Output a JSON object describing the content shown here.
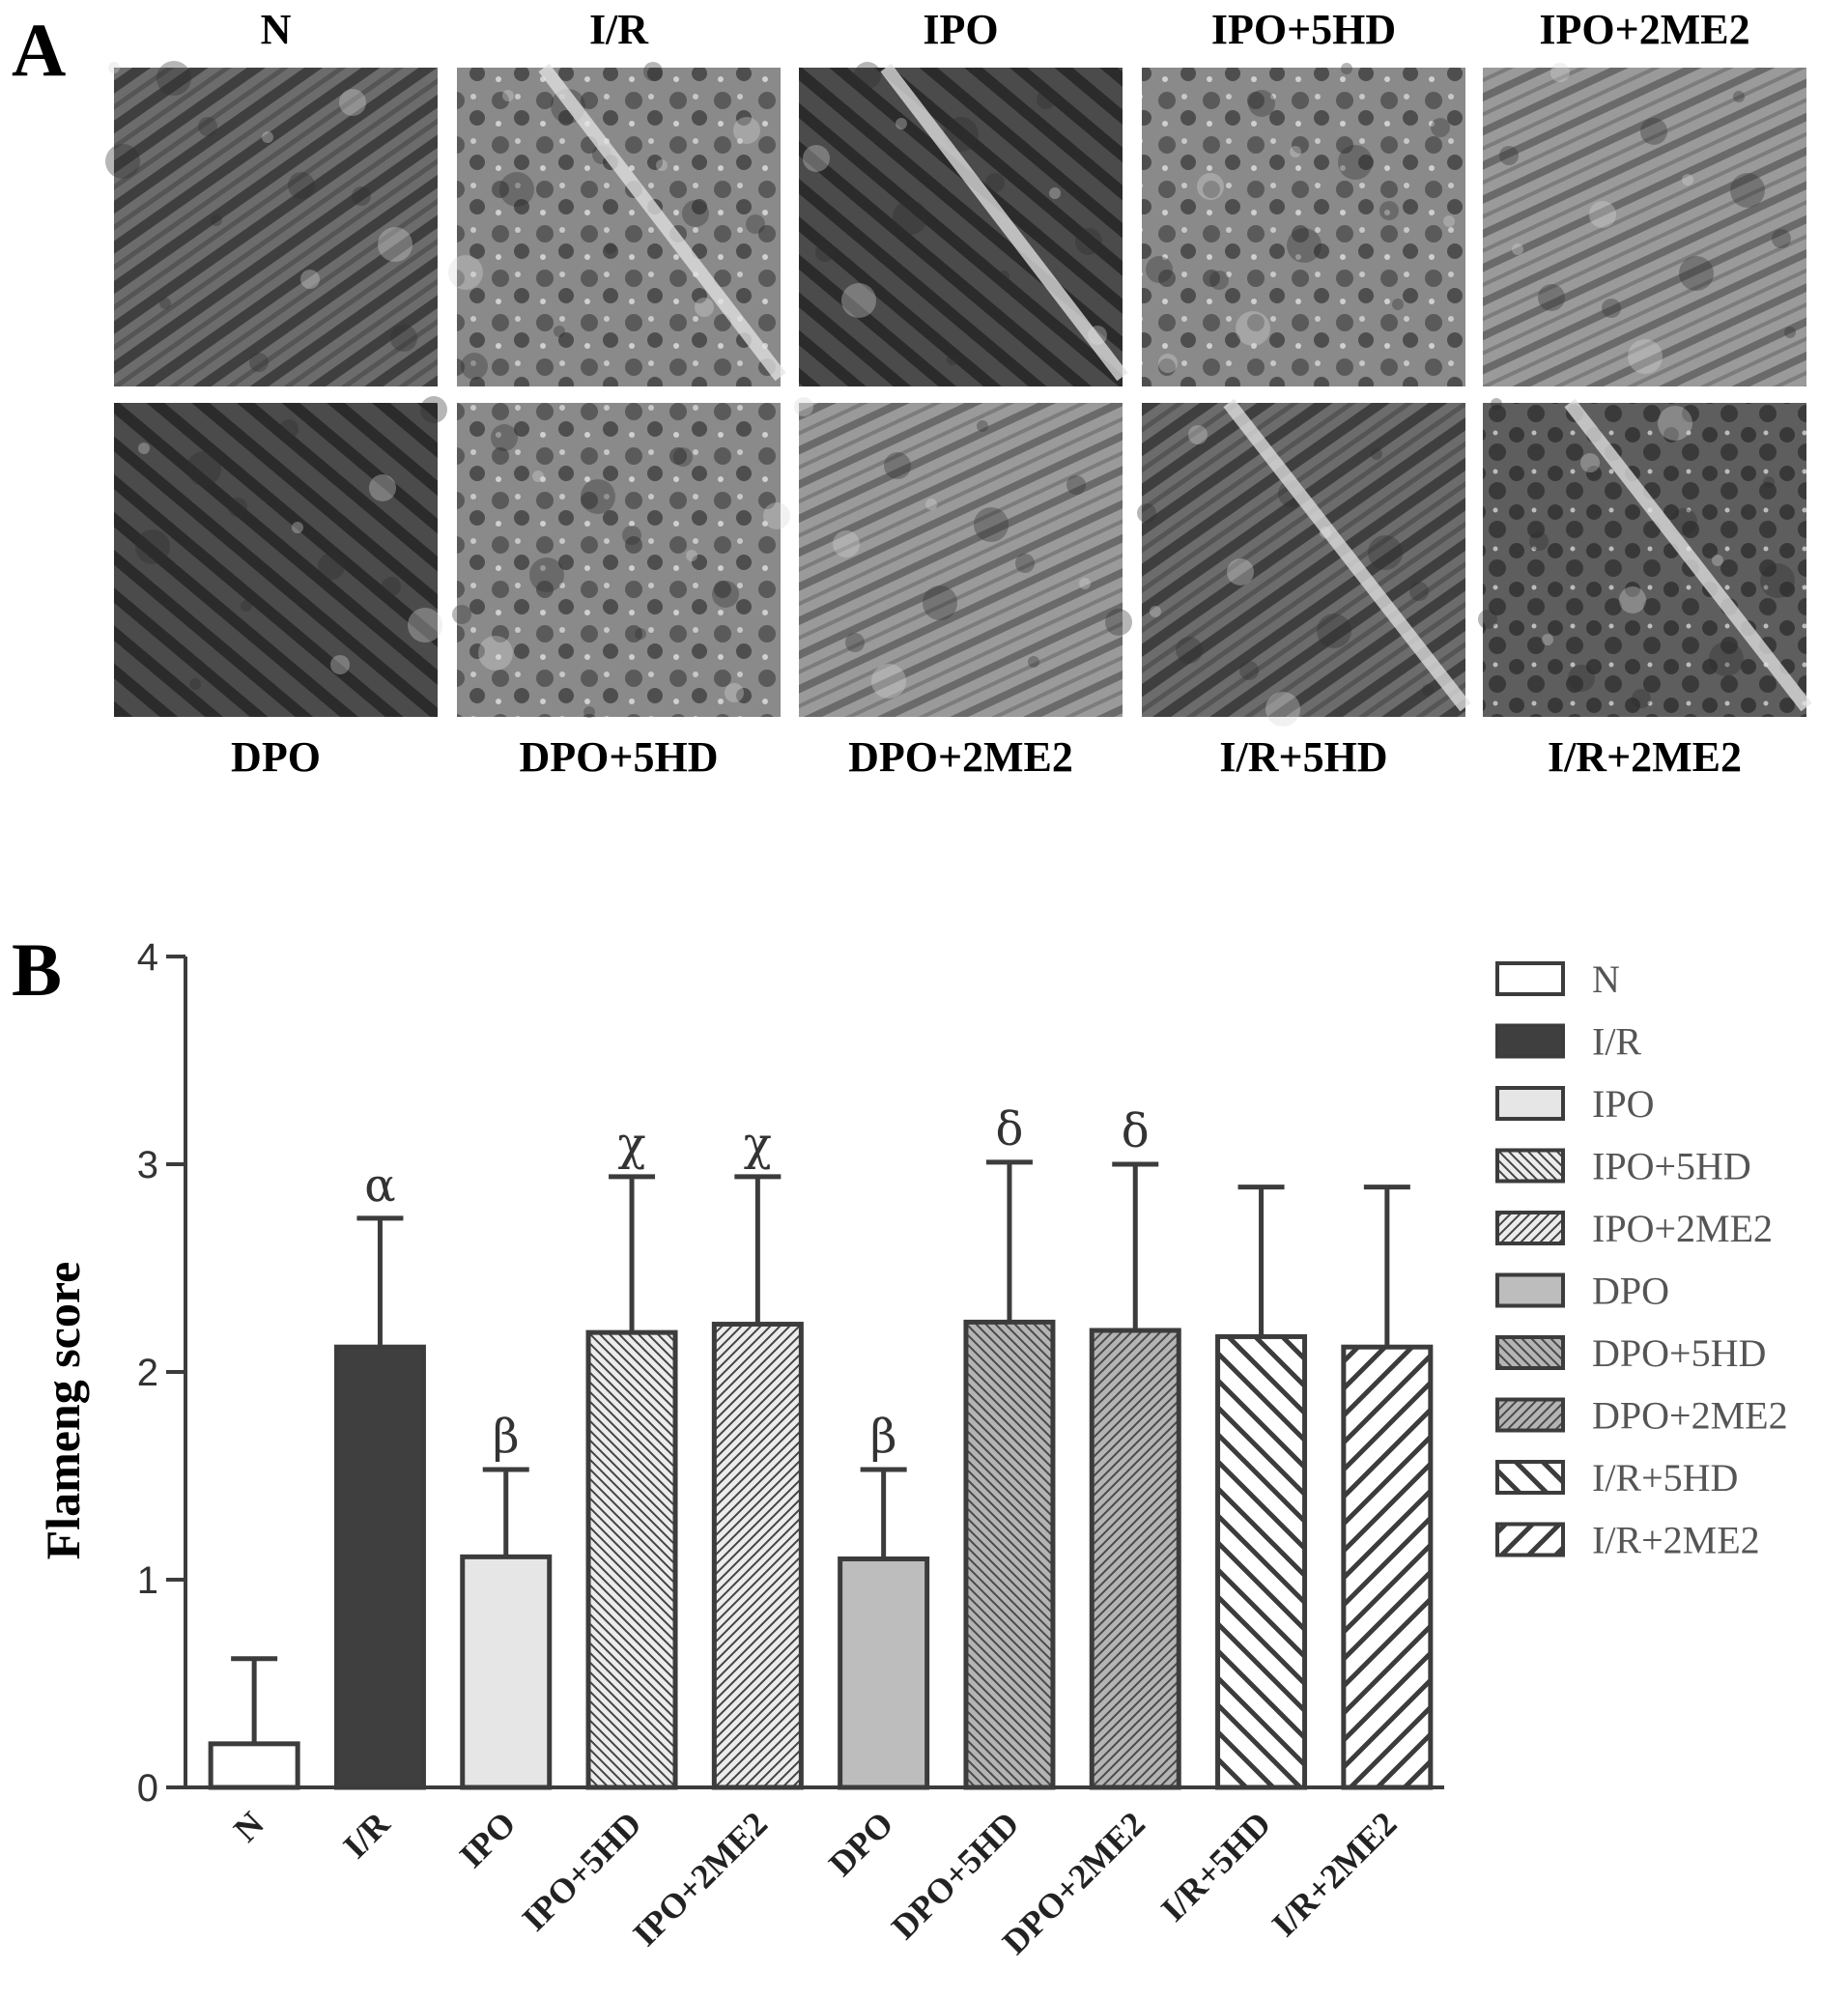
{
  "panel_a": {
    "label": "A",
    "top_row": [
      "N",
      "I/R",
      "IPO",
      "IPO+5HD",
      "IPO+2ME2"
    ],
    "bottom_row": [
      "DPO",
      "DPO+5HD",
      "DPO+2ME2",
      "I/R+5HD",
      "I/R+2ME2"
    ]
  },
  "panel_b": {
    "label": "B"
  },
  "chart_data": {
    "type": "bar",
    "title": "",
    "xlabel": "",
    "ylabel": "Flameng score",
    "ylim": [
      0,
      4
    ],
    "yticks": [
      "0",
      "1",
      "2",
      "3",
      "4"
    ],
    "grid": false,
    "legend_position": "right",
    "categories": [
      "N",
      "I/R",
      "IPO",
      "IPO+5HD",
      "IPO+2ME2",
      "DPO",
      "DPO+5HD",
      "DPO+2ME2",
      "I/R+5HD",
      "I/R+2ME2"
    ],
    "values": [
      0.21,
      2.12,
      1.11,
      2.19,
      2.23,
      1.1,
      2.24,
      2.2,
      2.17,
      2.12
    ],
    "errors": [
      0.41,
      0.62,
      0.42,
      0.75,
      0.71,
      0.43,
      0.77,
      0.8,
      0.72,
      0.77
    ],
    "annotations": [
      "",
      "α",
      "β",
      "χ",
      "χ",
      "β",
      "δ",
      "δ",
      "",
      ""
    ],
    "fills": [
      "none",
      "solid-dark",
      "solid-light",
      "hatch-back-dense",
      "hatch-forward-dense",
      "solid-gray",
      "hatch-back-dense-gray",
      "hatch-forward-dense-gray",
      "hatch-back-wide",
      "hatch-forward-wide"
    ],
    "colors": {
      "stroke": "#3c3c3c",
      "dark": "#3f3f3f",
      "light": "#e6e6e6",
      "gray": "#bdbdbd",
      "white": "#ffffff"
    }
  }
}
